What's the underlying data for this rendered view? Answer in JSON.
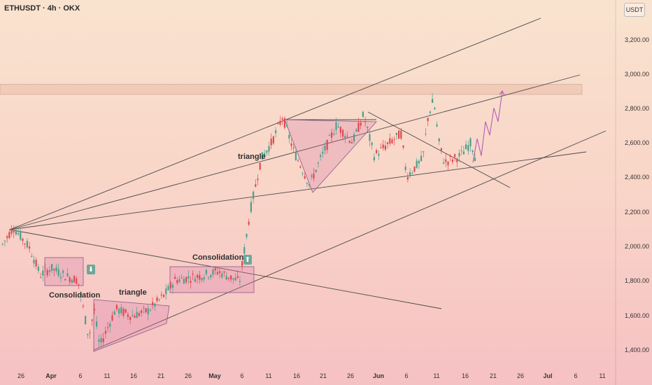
{
  "header": {
    "symbol": "ETHUSDT · 4h · OKX"
  },
  "currency": "USDT",
  "chart_data": {
    "type": "candlestick",
    "title": "ETHUSDT · 4h · OKX",
    "price_axis": [
      "3,200.00",
      "3,000.00",
      "2,800.00",
      "2,600.00",
      "2,400.00",
      "2,200.00",
      "2,000.00",
      "1,800.00",
      "1,600.00",
      "1,400.00"
    ],
    "time_axis": [
      {
        "label": "26",
        "bold": false
      },
      {
        "label": "Apr",
        "bold": true
      },
      {
        "label": "6",
        "bold": false
      },
      {
        "label": "11",
        "bold": false
      },
      {
        "label": "16",
        "bold": false
      },
      {
        "label": "21",
        "bold": false
      },
      {
        "label": "26",
        "bold": false
      },
      {
        "label": "May",
        "bold": true
      },
      {
        "label": "6",
        "bold": false
      },
      {
        "label": "11",
        "bold": false
      },
      {
        "label": "16",
        "bold": false
      },
      {
        "label": "21",
        "bold": false
      },
      {
        "label": "26",
        "bold": false
      },
      {
        "label": "Jun",
        "bold": true
      },
      {
        "label": "6",
        "bold": false
      },
      {
        "label": "11",
        "bold": false
      },
      {
        "label": "16",
        "bold": false
      },
      {
        "label": "21",
        "bold": false
      },
      {
        "label": "26",
        "bold": false
      },
      {
        "label": "Jul",
        "bold": true
      },
      {
        "label": "6",
        "bold": false
      },
      {
        "label": "11",
        "bold": false
      }
    ],
    "ylim": [
      1320,
      3420
    ],
    "resistance_zone": [
      2880,
      2940
    ],
    "price_path": [
      [
        "Mar 23",
        2000
      ],
      [
        "Mar 25",
        2100
      ],
      [
        "Mar 28",
        1980
      ],
      [
        "Mar 30",
        1820
      ],
      [
        "Apr 1",
        1860
      ],
      [
        "Apr 4",
        1810
      ],
      [
        "Apr 6",
        1790
      ],
      [
        "Apr 8",
        1450
      ],
      [
        "Apr 9",
        1620
      ],
      [
        "Apr 10",
        1400
      ],
      [
        "Apr 13",
        1620
      ],
      [
        "Apr 16",
        1580
      ],
      [
        "Apr 19",
        1610
      ],
      [
        "Apr 22",
        1700
      ],
      [
        "Apr 24",
        1790
      ],
      [
        "Apr 28",
        1810
      ],
      [
        "May 2",
        1840
      ],
      [
        "May 6",
        1780
      ],
      [
        "May 8",
        2200
      ],
      [
        "May 10",
        2500
      ],
      [
        "May 12",
        2600
      ],
      [
        "May 14",
        2750
      ],
      [
        "May 16",
        2550
      ],
      [
        "May 19",
        2350
      ],
      [
        "May 21",
        2500
      ],
      [
        "May 24",
        2700
      ],
      [
        "May 27",
        2600
      ],
      [
        "May 29",
        2760
      ],
      [
        "May 31",
        2520
      ],
      [
        "Jun 3",
        2600
      ],
      [
        "Jun 5",
        2650
      ],
      [
        "Jun 6",
        2400
      ],
      [
        "Jun 9",
        2500
      ],
      [
        "Jun 10",
        2750
      ],
      [
        "Jun 11",
        2850
      ],
      [
        "Jun 12",
        2600
      ],
      [
        "Jun 13",
        2480
      ],
      [
        "Jun 16",
        2520
      ],
      [
        "Jun 18",
        2600
      ],
      [
        "Jun 19",
        2480
      ]
    ],
    "projection": [
      2480,
      2620,
      2520,
      2720,
      2640,
      2800,
      2720,
      2900
    ],
    "annotations": [
      {
        "text": "Consolidation"
      },
      {
        "text": "triangle"
      },
      {
        "text": "Consolidation"
      },
      {
        "text": "triangle"
      }
    ],
    "signals": [
      {
        "direction": "down",
        "glyph": "⬇"
      },
      {
        "direction": "up",
        "glyph": "⬆"
      }
    ]
  }
}
